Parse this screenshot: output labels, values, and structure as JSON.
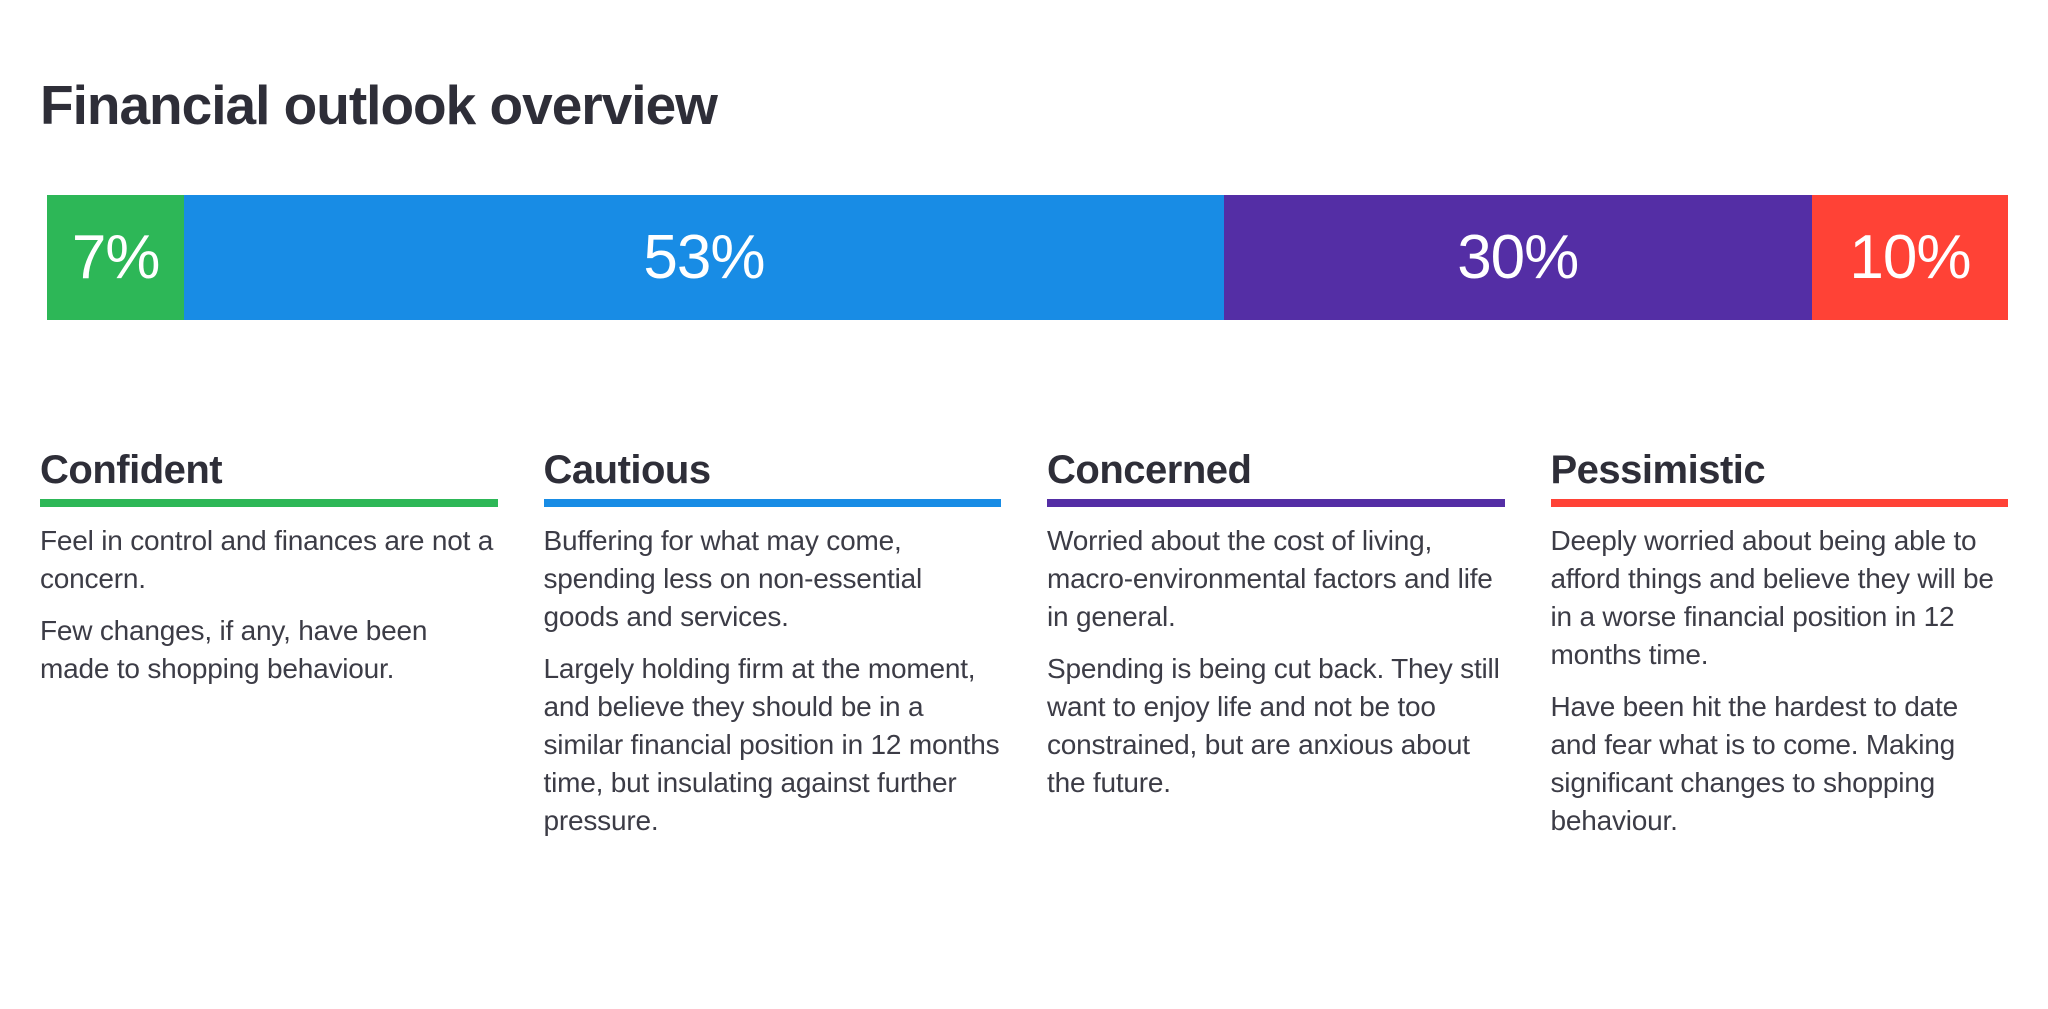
{
  "page": {
    "title": "Financial outlook overview",
    "background_color": "#ffffff",
    "text_color": "#2e2e38"
  },
  "chart_data": {
    "type": "bar",
    "variant": "single-stacked-horizontal",
    "title": "Financial outlook overview",
    "categories": [
      "Confident",
      "Cautious",
      "Concerned",
      "Pessimistic"
    ],
    "values": [
      7,
      53,
      30,
      10
    ],
    "value_labels": [
      "7%",
      "53%",
      "30%",
      "10%"
    ],
    "unit": "%",
    "xlim": [
      0,
      100
    ],
    "colors": [
      "#2db757",
      "#188ce5",
      "#542ea5",
      "#ff4236"
    ],
    "axes_visible": false,
    "grid": false,
    "legend_position": "below-as-columns",
    "value_label_color": "#ffffff"
  },
  "segments": [
    {
      "name": "Confident",
      "value": 7,
      "value_label": "7%",
      "color": "#2db757",
      "paragraphs": [
        "Feel in control and finances are not a concern.",
        "Few changes, if any, have been made to shopping behaviour."
      ]
    },
    {
      "name": "Cautious",
      "value": 53,
      "value_label": "53%",
      "color": "#188ce5",
      "paragraphs": [
        "Buffering for what may come, spending less on non-essential goods and services.",
        "Largely holding firm at the moment, and believe they should be in a similar financial position in 12 months time, but insulating against further pressure."
      ]
    },
    {
      "name": "Concerned",
      "value": 30,
      "value_label": "30%",
      "color": "#542ea5",
      "paragraphs": [
        "Worried about the cost of living, macro-environmental factors and life in general.",
        "Spending is being cut back. They still want to enjoy life and not be too constrained, but are anxious about the future."
      ]
    },
    {
      "name": "Pessimistic",
      "value": 10,
      "value_label": "10%",
      "color": "#ff4236",
      "paragraphs": [
        "Deeply worried about being able to afford things and believe they will be in a worse financial position in 12 months time.",
        "Have been hit the hardest to date and fear what is to come. Making significant changes to shopping behaviour."
      ]
    }
  ]
}
